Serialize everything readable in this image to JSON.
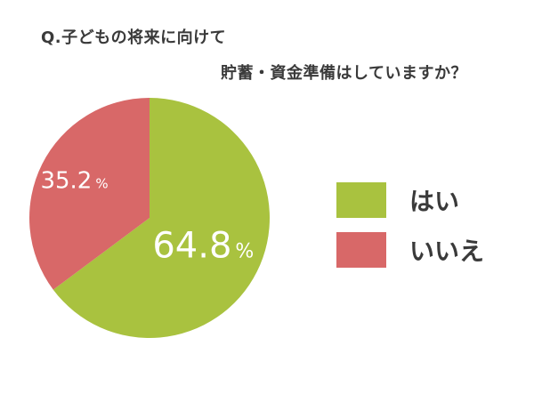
{
  "title": {
    "line1": "Q.子どもの将来に向けて",
    "line2": "貯蓄・資金準備はしていますか？"
  },
  "chart_data": {
    "type": "pie",
    "categories": [
      "はい",
      "いいえ"
    ],
    "values": [
      64.8,
      35.2
    ],
    "colors": [
      "#a9c23f",
      "#d86868"
    ],
    "data_labels": [
      "64.8",
      "35.2"
    ],
    "unit": "%",
    "legend_position": "right"
  }
}
